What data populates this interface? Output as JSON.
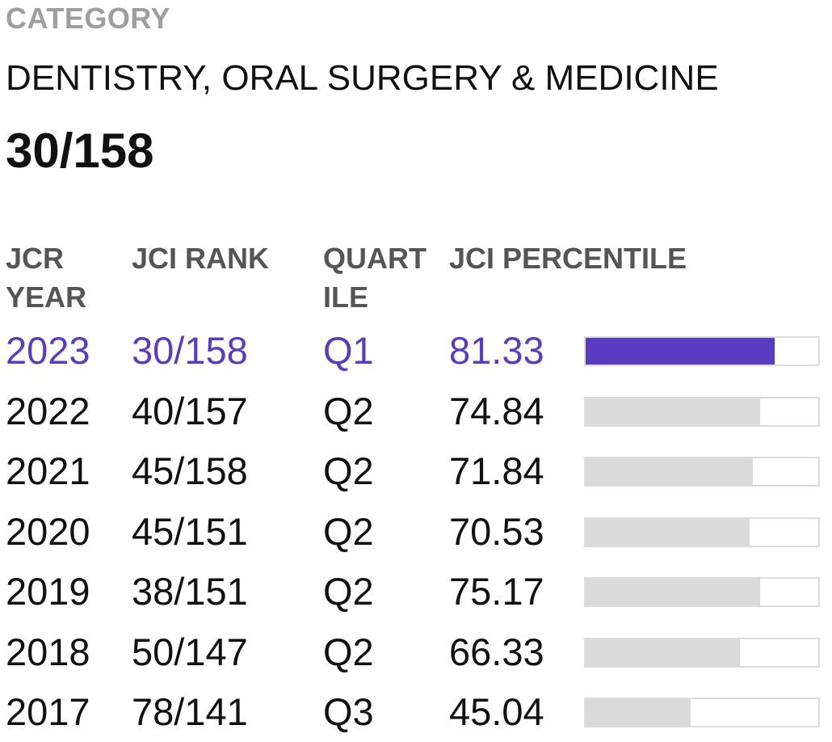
{
  "category": {
    "label": "CATEGORY",
    "name": "DENTISTRY, ORAL SURGERY & MEDICINE",
    "rank": "30/158"
  },
  "table": {
    "headers": {
      "year": "JCR YEAR",
      "rank": "JCI RANK",
      "quartile": "QUART ILE",
      "percentile": "JCI PERCENTILE"
    },
    "rows": [
      {
        "year": "2023",
        "rank": "30/158",
        "quartile": "Q1",
        "percentile": "81.33",
        "highlight": true
      },
      {
        "year": "2022",
        "rank": "40/157",
        "quartile": "Q2",
        "percentile": "74.84",
        "highlight": false
      },
      {
        "year": "2021",
        "rank": "45/158",
        "quartile": "Q2",
        "percentile": "71.84",
        "highlight": false
      },
      {
        "year": "2020",
        "rank": "45/151",
        "quartile": "Q2",
        "percentile": "70.53",
        "highlight": false
      },
      {
        "year": "2019",
        "rank": "38/151",
        "quartile": "Q2",
        "percentile": "75.17",
        "highlight": false
      },
      {
        "year": "2018",
        "rank": "50/147",
        "quartile": "Q2",
        "percentile": "66.33",
        "highlight": false
      },
      {
        "year": "2017",
        "rank": "78/141",
        "quartile": "Q3",
        "percentile": "45.04",
        "highlight": false
      }
    ]
  },
  "colors": {
    "highlight": "#5b3bbf",
    "bar_inactive": "#dadada",
    "label_gray": "#9e9e9e"
  }
}
